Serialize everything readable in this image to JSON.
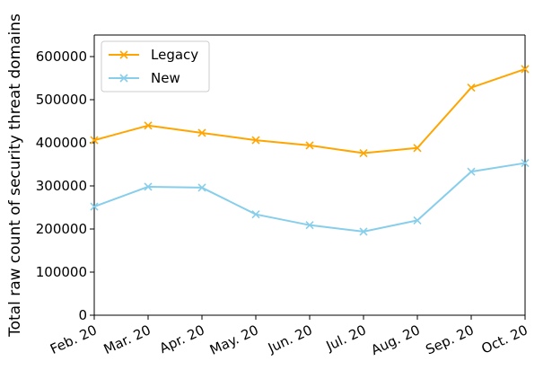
{
  "chart_data": {
    "type": "line",
    "title": "",
    "xlabel": "",
    "ylabel": "Total raw count of security threat domains",
    "categories": [
      "Feb. 20",
      "Mar. 20",
      "Apr. 20",
      "May. 20",
      "Jun. 20",
      "Jul. 20",
      "Aug. 20",
      "Sep. 20",
      "Oct. 20"
    ],
    "yticks": [
      "0",
      "100000",
      "200000",
      "300000",
      "400000",
      "500000",
      "600000"
    ],
    "ylim": [
      0,
      650000
    ],
    "grid": false,
    "legend_position": "upper-left",
    "marker": "x",
    "series": [
      {
        "name": "Legacy",
        "color": "#FFA500",
        "values": [
          406000,
          440000,
          423000,
          406000,
          394000,
          376000,
          388000,
          528000,
          571000
        ]
      },
      {
        "name": "New",
        "color": "#87CEEB",
        "values": [
          252000,
          298000,
          296000,
          234000,
          209000,
          194000,
          220000,
          333000,
          353000
        ]
      }
    ]
  }
}
